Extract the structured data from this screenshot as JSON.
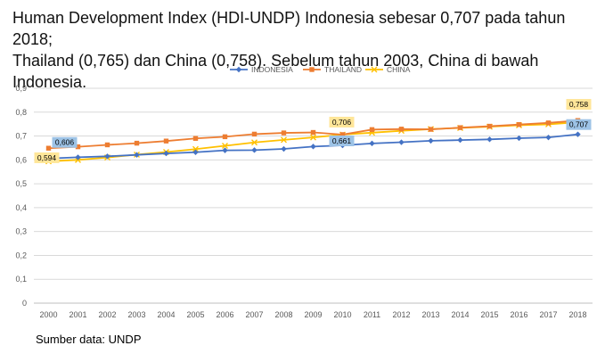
{
  "headline": {
    "line1": "Human Development Index (HDI-UNDP) Indonesia sebesar 0,707 pada tahun 2018;",
    "line2": "Thailand (0,765) dan China (0,758). Sebelum tahun 2003, China di bawah Indonesia."
  },
  "source": "Sumber data: UNDP",
  "colors": {
    "indonesia": "#4472C4",
    "thailand": "#ED7D31",
    "china": "#FFC000",
    "grid": "#d9d9d9",
    "axis_text": "#595959",
    "label_blue_bg": "#9DC3E6",
    "label_yellow_bg": "#FFE699"
  },
  "chart_data": {
    "type": "line",
    "title": "",
    "xlabel": "",
    "ylabel": "",
    "ylim": [
      0,
      0.9
    ],
    "ytick_labels": [
      "0",
      "0,1",
      "0,2",
      "0,3",
      "0,4",
      "0,5",
      "0,6",
      "0,7",
      "0,8",
      "0,9"
    ],
    "grid": true,
    "legend_position": "top-center",
    "categories": [
      "2000",
      "2001",
      "2002",
      "2003",
      "2004",
      "2005",
      "2006",
      "2007",
      "2008",
      "2009",
      "2010",
      "2011",
      "2012",
      "2013",
      "2014",
      "2015",
      "2016",
      "2017",
      "2018"
    ],
    "series": [
      {
        "name": "INDONESIA",
        "marker": "diamond",
        "values": [
          0.606,
          0.611,
          0.615,
          0.621,
          0.627,
          0.632,
          0.64,
          0.641,
          0.646,
          0.656,
          0.661,
          0.669,
          0.674,
          0.68,
          0.683,
          0.686,
          0.691,
          0.694,
          0.707
        ]
      },
      {
        "name": "THAILAND",
        "marker": "square",
        "values": [
          0.649,
          0.655,
          0.663,
          0.67,
          0.679,
          0.69,
          0.697,
          0.708,
          0.713,
          0.715,
          0.706,
          0.727,
          0.729,
          0.728,
          0.735,
          0.741,
          0.748,
          0.755,
          0.765
        ]
      },
      {
        "name": "CHINA",
        "marker": "x",
        "values": [
          0.594,
          0.6,
          0.61,
          0.622,
          0.633,
          0.645,
          0.659,
          0.673,
          0.684,
          0.694,
          0.706,
          0.714,
          0.722,
          0.729,
          0.734,
          0.739,
          0.745,
          0.749,
          0.758
        ]
      }
    ],
    "data_labels": [
      {
        "series": "INDONESIA",
        "x": "2000",
        "text": "0,606",
        "style": "blue"
      },
      {
        "series": "CHINA",
        "x": "2000",
        "text": "0,594",
        "style": "yellow"
      },
      {
        "series": "CHINA",
        "x": "2010",
        "text": "0,706",
        "style": "yellow"
      },
      {
        "series": "INDONESIA",
        "x": "2010",
        "text": "0,661",
        "style": "blue"
      },
      {
        "series": "CHINA",
        "x": "2018",
        "text": "0,758",
        "style": "yellow"
      },
      {
        "series": "INDONESIA",
        "x": "2018",
        "text": "0,707",
        "style": "blue"
      }
    ]
  }
}
